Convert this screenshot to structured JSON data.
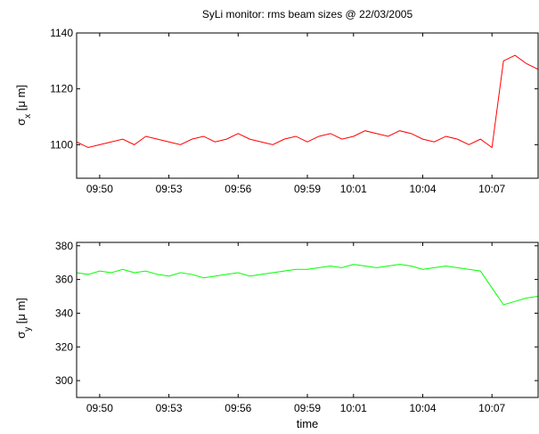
{
  "chart_data": [
    {
      "type": "line",
      "title": "SyLi monitor: rms beam sizes @ 22/03/2005",
      "xlabel": "",
      "ylabel": "σ_x [μ m]",
      "ylabel_main": "σ",
      "ylabel_sub": "x",
      "ylabel_unit": " [μ m]",
      "xlim": [
        "09:49",
        "10:09"
      ],
      "ylim": [
        1088,
        1140
      ],
      "x_ticks": [
        "09:50",
        "09:53",
        "09:56",
        "09:59",
        "10:01",
        "10:04",
        "10:07"
      ],
      "y_ticks": [
        1100,
        1120,
        1140
      ],
      "grid": false,
      "color": "#ff0000",
      "series": [
        {
          "x": [
            "09:49:00",
            "09:49:30",
            "09:50:00",
            "09:50:30",
            "09:51:00",
            "09:51:30",
            "09:52:00",
            "09:52:30",
            "09:53:00",
            "09:53:30",
            "09:54:00",
            "09:54:30",
            "09:55:00",
            "09:55:30",
            "09:56:00",
            "09:56:30",
            "09:57:00",
            "09:57:30",
            "09:58:00",
            "09:58:30",
            "09:59:00",
            "09:59:30",
            "10:00:00",
            "10:00:30",
            "10:01:00",
            "10:01:30",
            "10:02:00",
            "10:02:30",
            "10:03:00",
            "10:03:30",
            "10:04:00",
            "10:04:30",
            "10:05:00",
            "10:05:30",
            "10:06:00",
            "10:06:30",
            "10:07:00",
            "10:07:30",
            "10:08:00",
            "10:08:30",
            "10:09:00"
          ],
          "values": [
            1101,
            1099,
            1100,
            1101,
            1102,
            1100,
            1103,
            1102,
            1101,
            1100,
            1102,
            1103,
            1101,
            1102,
            1104,
            1102,
            1101,
            1100,
            1102,
            1103,
            1101,
            1103,
            1104,
            1102,
            1103,
            1105,
            1104,
            1103,
            1105,
            1104,
            1102,
            1101,
            1103,
            1102,
            1100,
            1102,
            1099,
            1130,
            1132,
            1129,
            1127
          ]
        }
      ]
    },
    {
      "type": "line",
      "xlabel": "time",
      "ylabel": "σ_y [μ m]",
      "ylabel_main": "σ",
      "ylabel_sub": "y",
      "ylabel_unit": " [μ m]",
      "xlim": [
        "09:49",
        "10:09"
      ],
      "ylim": [
        290,
        382
      ],
      "x_ticks": [
        "09:50",
        "09:53",
        "09:56",
        "09:59",
        "10:01",
        "10:04",
        "10:07"
      ],
      "y_ticks": [
        300,
        320,
        340,
        360,
        380
      ],
      "grid": false,
      "color": "#00ff00",
      "series": [
        {
          "x": [
            "09:49:00",
            "09:49:30",
            "09:50:00",
            "09:50:30",
            "09:51:00",
            "09:51:30",
            "09:52:00",
            "09:52:30",
            "09:53:00",
            "09:53:30",
            "09:54:00",
            "09:54:30",
            "09:55:00",
            "09:55:30",
            "09:56:00",
            "09:56:30",
            "09:57:00",
            "09:57:30",
            "09:58:00",
            "09:58:30",
            "09:59:00",
            "09:59:30",
            "10:00:00",
            "10:00:30",
            "10:01:00",
            "10:01:30",
            "10:02:00",
            "10:02:30",
            "10:03:00",
            "10:03:30",
            "10:04:00",
            "10:04:30",
            "10:05:00",
            "10:05:30",
            "10:06:00",
            "10:06:30",
            "10:07:00",
            "10:07:30",
            "10:08:00",
            "10:08:30",
            "10:09:00"
          ],
          "values": [
            364,
            363,
            365,
            364,
            366,
            364,
            365,
            363,
            362,
            364,
            363,
            361,
            362,
            363,
            364,
            362,
            363,
            364,
            365,
            366,
            366,
            367,
            368,
            367,
            369,
            368,
            367,
            368,
            369,
            368,
            366,
            367,
            368,
            367,
            366,
            365,
            355,
            345,
            347,
            349,
            350
          ]
        }
      ]
    }
  ]
}
